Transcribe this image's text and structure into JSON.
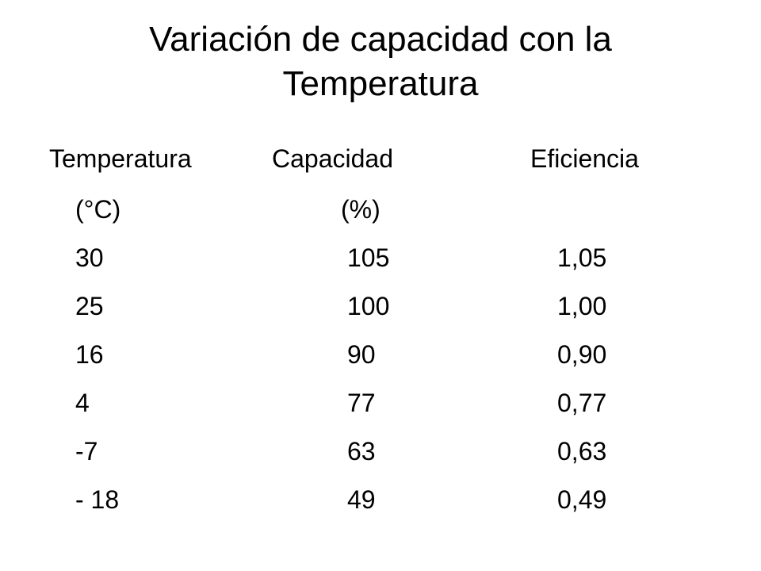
{
  "slide": {
    "title_line1": "Variación de capacidad con la",
    "title_line2": "Temperatura"
  },
  "table": {
    "headers": {
      "temperature": "Temperatura",
      "capacity": "Capacidad",
      "efficiency": "Eficiencia"
    },
    "units": {
      "temperature": "(°C)",
      "capacity": "(%)"
    },
    "rows": [
      {
        "temperature": "30",
        "capacity": "105",
        "efficiency": "1,05"
      },
      {
        "temperature": "25",
        "capacity": "100",
        "efficiency": "1,00"
      },
      {
        "temperature": "16",
        "capacity": "90",
        "efficiency": "0,90"
      },
      {
        "temperature": "4",
        "capacity": "77",
        "efficiency": "0,77"
      },
      {
        "temperature": "-7",
        "capacity": "63",
        "efficiency": "0,63"
      },
      {
        "temperature": "- 18",
        "capacity": "49",
        "efficiency": "0,49"
      }
    ]
  }
}
